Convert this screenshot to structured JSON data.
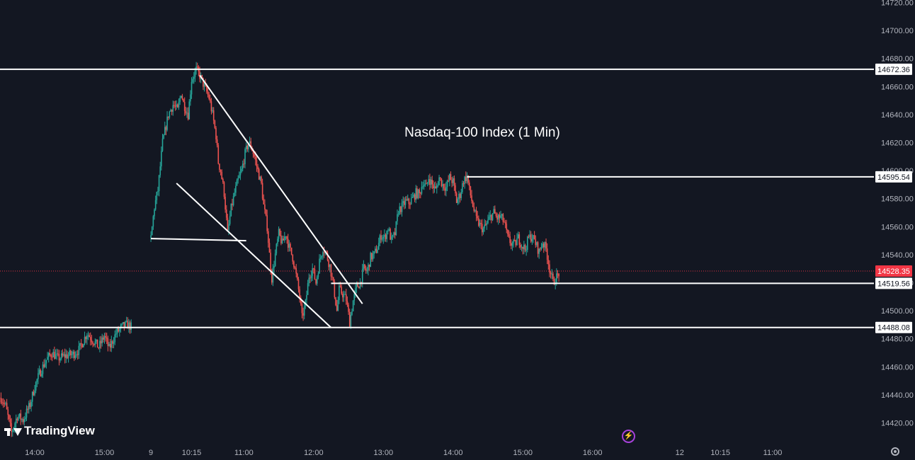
{
  "chart_data": {
    "type": "candlestick",
    "title": "Nasdaq-100 Index (1 Min)",
    "y_axis": {
      "ticks": [
        14720,
        14700,
        14680,
        14660,
        14640,
        14620,
        14600,
        14580,
        14560,
        14540,
        14520,
        14500,
        14480,
        14460,
        14440,
        14420
      ],
      "ylim": [
        14405,
        14722
      ],
      "position": "right"
    },
    "x_axis": {
      "ticks": [
        {
          "label": "14:00",
          "t": 0
        },
        {
          "label": "15:00",
          "t": 60
        },
        {
          "label": "9",
          "t": 100
        },
        {
          "label": "10:15",
          "t": 135
        },
        {
          "label": "11:00",
          "t": 180
        },
        {
          "label": "12:00",
          "t": 240
        },
        {
          "label": "13:00",
          "t": 300
        },
        {
          "label": "14:00",
          "t": 360
        },
        {
          "label": "15:00",
          "t": 420
        },
        {
          "label": "16:00",
          "t": 480
        },
        {
          "label": "12",
          "t": 555
        },
        {
          "label": "10:15",
          "t": 590
        },
        {
          "label": "11:00",
          "t": 635
        }
      ]
    },
    "colors": {
      "up": "#26a69a",
      "down": "#ef5350",
      "level": "#ffffff",
      "last_price": "#f23645"
    },
    "price_path": {
      "session1": [
        [
          -29,
          14438
        ],
        [
          -25,
          14432
        ],
        [
          -20,
          14413
        ],
        [
          -15,
          14425
        ],
        [
          -10,
          14422
        ],
        [
          -4,
          14433
        ],
        [
          0,
          14446
        ],
        [
          4,
          14455
        ],
        [
          10,
          14465
        ],
        [
          15,
          14470
        ],
        [
          20,
          14466
        ],
        [
          27,
          14468
        ],
        [
          33,
          14469
        ],
        [
          38,
          14472
        ],
        [
          45,
          14484
        ],
        [
          50,
          14479
        ],
        [
          55,
          14474
        ],
        [
          60,
          14482
        ],
        [
          64,
          14473
        ],
        [
          70,
          14484
        ],
        [
          76,
          14489
        ],
        [
          80,
          14490
        ],
        [
          84,
          14488
        ]
      ],
      "session2": [
        [
          100,
          14552
        ],
        [
          103,
          14574
        ],
        [
          106,
          14586
        ],
        [
          110,
          14620
        ],
        [
          115,
          14640
        ],
        [
          119,
          14647
        ],
        [
          123,
          14643
        ],
        [
          126,
          14656
        ],
        [
          128,
          14648
        ],
        [
          132,
          14640
        ],
        [
          135,
          14665
        ],
        [
          139,
          14672
        ],
        [
          142,
          14668
        ],
        [
          146,
          14660
        ],
        [
          150,
          14652
        ],
        [
          153,
          14640
        ],
        [
          156,
          14625
        ],
        [
          158,
          14606
        ],
        [
          160,
          14600
        ],
        [
          163,
          14584
        ],
        [
          166,
          14555
        ],
        [
          169,
          14573
        ],
        [
          172,
          14584
        ],
        [
          175,
          14593
        ],
        [
          178,
          14600
        ],
        [
          181,
          14612
        ],
        [
          184,
          14620
        ],
        [
          186,
          14618
        ],
        [
          189,
          14610
        ],
        [
          192,
          14600
        ],
        [
          195,
          14590
        ],
        [
          197,
          14575
        ],
        [
          200,
          14560
        ],
        [
          202,
          14540
        ],
        [
          204,
          14523
        ],
        [
          207,
          14540
        ],
        [
          210,
          14555
        ],
        [
          213,
          14548
        ],
        [
          216,
          14555
        ],
        [
          219,
          14545
        ],
        [
          222,
          14538
        ],
        [
          225,
          14525
        ],
        [
          228,
          14510
        ],
        [
          230,
          14495
        ],
        [
          233,
          14505
        ],
        [
          236,
          14525
        ],
        [
          239,
          14530
        ],
        [
          242,
          14520
        ],
        [
          245,
          14535
        ],
        [
          248,
          14545
        ],
        [
          251,
          14540
        ],
        [
          254,
          14532
        ],
        [
          257,
          14518
        ],
        [
          260,
          14500
        ],
        [
          262,
          14515
        ],
        [
          265,
          14512
        ],
        [
          268,
          14508
        ],
        [
          271,
          14492
        ],
        [
          274,
          14507
        ],
        [
          277,
          14517
        ],
        [
          280,
          14520
        ],
        [
          283,
          14530
        ],
        [
          286,
          14528
        ],
        [
          289,
          14538
        ],
        [
          292,
          14540
        ],
        [
          295,
          14545
        ],
        [
          298,
          14554
        ],
        [
          301,
          14552
        ],
        [
          304,
          14559
        ],
        [
          307,
          14550
        ],
        [
          310,
          14555
        ],
        [
          313,
          14572
        ],
        [
          316,
          14574
        ],
        [
          319,
          14578
        ],
        [
          322,
          14577
        ],
        [
          325,
          14580
        ],
        [
          328,
          14584
        ],
        [
          331,
          14583
        ],
        [
          334,
          14592
        ],
        [
          337,
          14588
        ],
        [
          339,
          14595
        ],
        [
          342,
          14590
        ],
        [
          345,
          14586
        ],
        [
          348,
          14595
        ],
        [
          351,
          14590
        ],
        [
          354,
          14588
        ],
        [
          357,
          14595
        ],
        [
          360,
          14592
        ],
        [
          363,
          14578
        ],
        [
          366,
          14583
        ],
        [
          369,
          14593
        ],
        [
          372,
          14596
        ],
        [
          374,
          14586
        ],
        [
          377,
          14575
        ],
        [
          380,
          14565
        ],
        [
          383,
          14561
        ],
        [
          386,
          14558
        ],
        [
          389,
          14562
        ],
        [
          392,
          14567
        ],
        [
          395,
          14570
        ],
        [
          398,
          14566
        ],
        [
          401,
          14567
        ],
        [
          404,
          14563
        ],
        [
          407,
          14552
        ],
        [
          410,
          14548
        ],
        [
          413,
          14547
        ],
        [
          416,
          14552
        ],
        [
          419,
          14547
        ],
        [
          422,
          14544
        ],
        [
          425,
          14552
        ],
        [
          428,
          14553
        ],
        [
          431,
          14548
        ],
        [
          434,
          14542
        ],
        [
          437,
          14549
        ],
        [
          440,
          14544
        ],
        [
          443,
          14530
        ],
        [
          446,
          14520
        ],
        [
          449,
          14524
        ],
        [
          452,
          14528
        ]
      ]
    },
    "levels": [
      {
        "label": "14672.36",
        "value": 14672.36,
        "x_start": "left-edge"
      },
      {
        "label": "14595.54",
        "value": 14595.54,
        "x_start": 372
      },
      {
        "label": "14519.56",
        "value": 14519.56,
        "x_start": 255
      },
      {
        "label": "14488.08",
        "value": 14488.08,
        "x_start": "left-edge"
      }
    ],
    "last_price": {
      "label": "14528.35",
      "value": 14528.35,
      "line": "dotted"
    },
    "trendlines": [
      [
        [
          100,
          14551.5
        ],
        [
          182,
          14550
        ]
      ],
      [
        [
          142,
          14668
        ],
        [
          282,
          14505
        ]
      ],
      [
        [
          122,
          14591
        ],
        [
          255,
          14488
        ]
      ]
    ],
    "grid": false,
    "legend": "none"
  },
  "watermark": {
    "text": "TradingView"
  },
  "icons": {
    "settings": "gear-icon",
    "replay": "lightning-icon"
  }
}
